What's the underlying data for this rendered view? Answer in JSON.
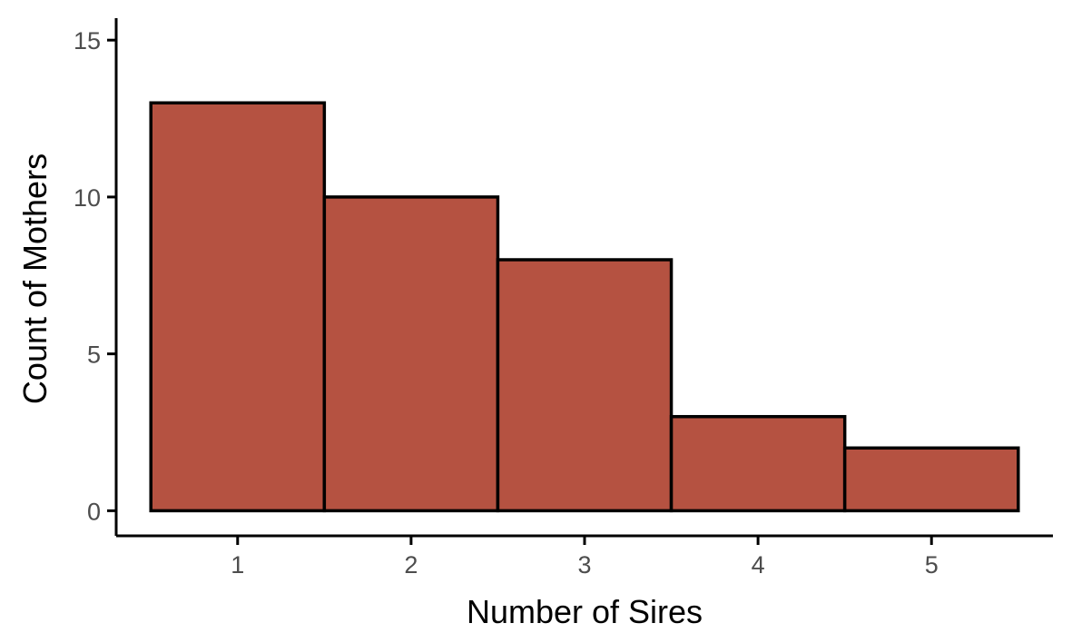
{
  "chart_data": {
    "type": "bar",
    "title": "",
    "xlabel": "Number of Sires",
    "ylabel": "Count of Mothers",
    "categories": [
      "1",
      "2",
      "3",
      "4",
      "5"
    ],
    "values": [
      13,
      10,
      8,
      3,
      2
    ],
    "xlim": [
      0.3,
      5.7
    ],
    "ylim": [
      -0.8,
      15.7
    ],
    "x_ticks": [
      1,
      2,
      3,
      4,
      5
    ],
    "x_tick_labels": [
      "1",
      "2",
      "3",
      "4",
      "5"
    ],
    "y_ticks": [
      0,
      5,
      10,
      15
    ],
    "y_tick_labels": [
      "0",
      "5",
      "10",
      "15"
    ],
    "grid": false,
    "legend": "none",
    "colors": {
      "bar_fill": "#b55241",
      "bar_stroke": "#000000",
      "axis": "#000000",
      "tick_text": "#4d4d4d"
    }
  }
}
